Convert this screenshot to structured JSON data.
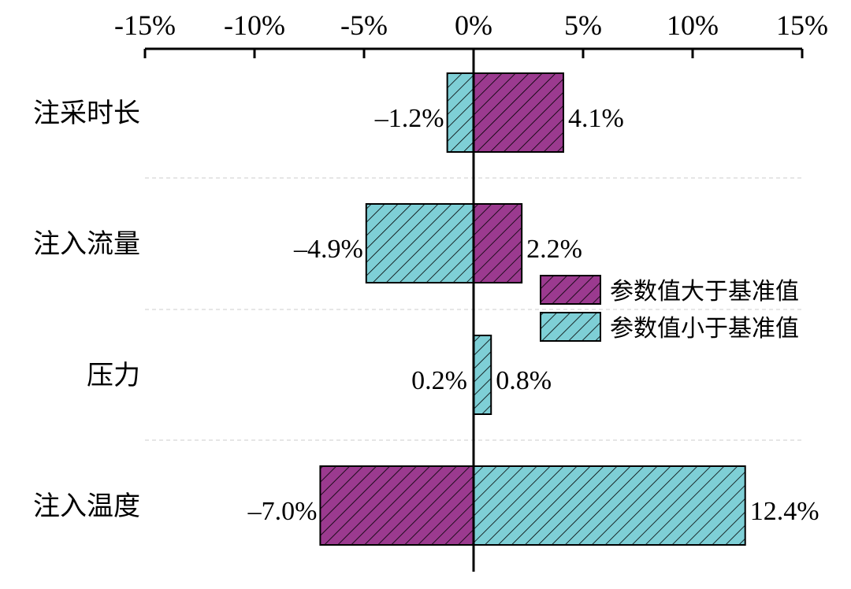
{
  "chart_data": {
    "type": "bar",
    "orientation": "horizontal",
    "title": "",
    "xlabel": "",
    "ylabel": "",
    "xlim": [
      -15,
      15
    ],
    "x_ticks": [
      -15,
      -10,
      -5,
      0,
      5,
      10,
      15
    ],
    "x_tick_labels": [
      "-15%",
      "-10%",
      "-5%",
      "0%",
      "5%",
      "10%",
      "15%"
    ],
    "categories": [
      "注采时长",
      "注入流量",
      "压力",
      "注入温度"
    ],
    "series": [
      {
        "name": "参数值大于基准值",
        "values": [
          4.1,
          2.2,
          0.2,
          -7.0
        ],
        "labels": [
          "4.1%",
          "2.2%",
          "0.2%",
          "–7.0%"
        ],
        "color": "#9b3a8f"
      },
      {
        "name": "参数值小于基准值",
        "values": [
          -1.2,
          -4.9,
          0.8,
          12.4
        ],
        "labels": [
          "–1.2%",
          "–4.9%",
          "0.8%",
          "12.4%"
        ],
        "color": "#7ecfd6"
      }
    ],
    "legend": {
      "position": "right",
      "entries": [
        "参数值大于基准值",
        "参数值小于基准值"
      ]
    },
    "grid": "horizontal dashed separators"
  }
}
